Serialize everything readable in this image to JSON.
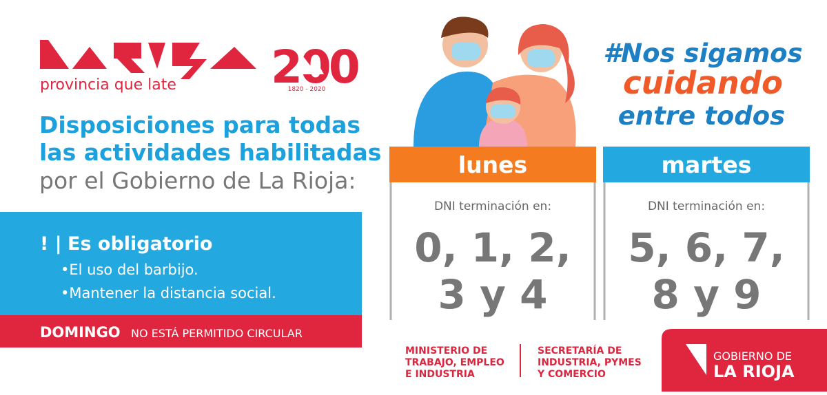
{
  "logo": {
    "tagline": "provincia que late"
  },
  "anniversary": {
    "number": "200",
    "years": "1820 - 2020"
  },
  "heading": {
    "lines": [
      "Disposiciones para todas",
      "las actividades habilitadas",
      "por el Gobierno de La Rioja:"
    ]
  },
  "notice": {
    "marker": "! |",
    "title": "Es obligatorio",
    "items": [
      "•El uso del barbijo.",
      "•Mantener la distancia social."
    ]
  },
  "banner": {
    "strong": "DOMINGO",
    "text": "NO ESTÁ PERMITIDO CIRCULAR"
  },
  "hashtag": {
    "lines": [
      "#Nos sigamos",
      "cuidando",
      "entre todos"
    ]
  },
  "days": [
    {
      "day": "lunes",
      "label": "DNI terminación en:",
      "digits": [
        "0, 1, 2,",
        "3 y 4"
      ]
    },
    {
      "day": "martes",
      "label": "DNI terminación en:",
      "digits": [
        "5, 6, 7,",
        "8 y 9"
      ]
    }
  ],
  "ministries": [
    [
      "MINISTERIO DE",
      "TRABAJO, EMPLEO",
      "E INDUSTRIA"
    ],
    [
      "SECRETARÍA DE",
      "INDUSTRIA, PYMES",
      "Y COMERCIO"
    ]
  ],
  "government": {
    "lines": [
      "GOBIERNO DE",
      "LA RIOJA"
    ]
  }
}
